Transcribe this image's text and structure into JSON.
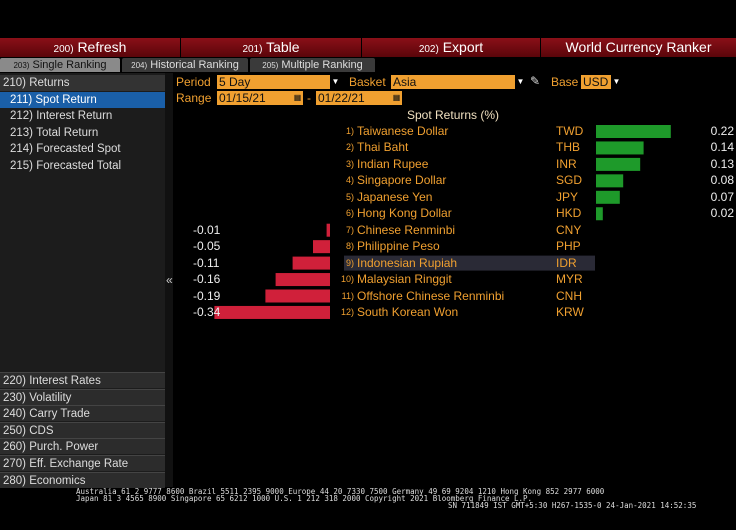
{
  "toolbar": [
    {
      "num": "200)",
      "label": "Refresh"
    },
    {
      "num": "201)",
      "label": "Table"
    },
    {
      "num": "202)",
      "label": "Export"
    }
  ],
  "app_title": "World Currency Ranker",
  "tabs": [
    {
      "num": "203)",
      "label": "Single Ranking"
    },
    {
      "num": "204)",
      "label": "Historical Ranking"
    },
    {
      "num": "205)",
      "label": "Multiple Ranking"
    }
  ],
  "menu": [
    {
      "num": "210)",
      "label": "Returns"
    },
    {
      "num": "211)",
      "label": "Spot Return"
    },
    {
      "num": "212)",
      "label": "Interest Return"
    },
    {
      "num": "213)",
      "label": "Total Return"
    },
    {
      "num": "214)",
      "label": "Forecasted Spot"
    },
    {
      "num": "215)",
      "label": "Forecasted Total"
    }
  ],
  "menu_bottom": [
    {
      "num": "220)",
      "label": "Interest Rates"
    },
    {
      "num": "230)",
      "label": "Volatility"
    },
    {
      "num": "240)",
      "label": "Carry Trade"
    },
    {
      "num": "250)",
      "label": "CDS"
    },
    {
      "num": "260)",
      "label": "Purch. Power"
    },
    {
      "num": "270)",
      "label": "Eff. Exchange Rate"
    },
    {
      "num": "280)",
      "label": "Economics"
    }
  ],
  "controls": {
    "period_label": "Period",
    "period": "5 Day",
    "basket_label": "Basket",
    "basket": "Asia",
    "base_label": "Base",
    "base": "USD",
    "range_label": "Range",
    "range_start": "01/15/21",
    "range_sep": "-",
    "range_end": "01/22/21"
  },
  "collapse": "«",
  "chart_data": {
    "type": "bar",
    "title": "Spot Returns (%)",
    "ranks": [
      "1)",
      "2)",
      "3)",
      "4)",
      "5)",
      "6)",
      "7)",
      "8)",
      "9)",
      "10)",
      "11)",
      "12)"
    ],
    "categories": [
      "Taiwanese Dollar",
      "Thai Baht",
      "Indian Rupee",
      "Singapore Dollar",
      "Japanese Yen",
      "Hong Kong Dollar",
      "Chinese Renminbi",
      "Philippine Peso",
      "Indonesian Rupiah",
      "Malaysian Ringgit",
      "Offshore Chinese Renminbi",
      "South Korean Won"
    ],
    "codes": [
      "TWD",
      "THB",
      "INR",
      "SGD",
      "JPY",
      "HKD",
      "CNY",
      "PHP",
      "IDR",
      "MYR",
      "CNH",
      "KRW"
    ],
    "values": [
      0.22,
      0.14,
      0.13,
      0.08,
      0.07,
      0.02,
      -0.01,
      -0.05,
      -0.11,
      -0.16,
      -0.19,
      -0.34
    ],
    "positive_color": "#1e9a2a",
    "negative_color": "#d0203a"
  },
  "footer": [
    "Australia 61 2 9777 8600 Brazil 5511 2395 9000 Europe 44 20 7330 7500 Germany 49 69 9204 1210 Hong Kong 852 2977 6000",
    "Japan 81 3 4565 8900       Singapore 65 6212 1000       U.S. 1 212 318 2000          Copyright 2021 Bloomberg Finance L.P.",
    "SN 711849 IST  GMT+5:30 H267-1535-0 24-Jan-2021 14:52:35"
  ]
}
